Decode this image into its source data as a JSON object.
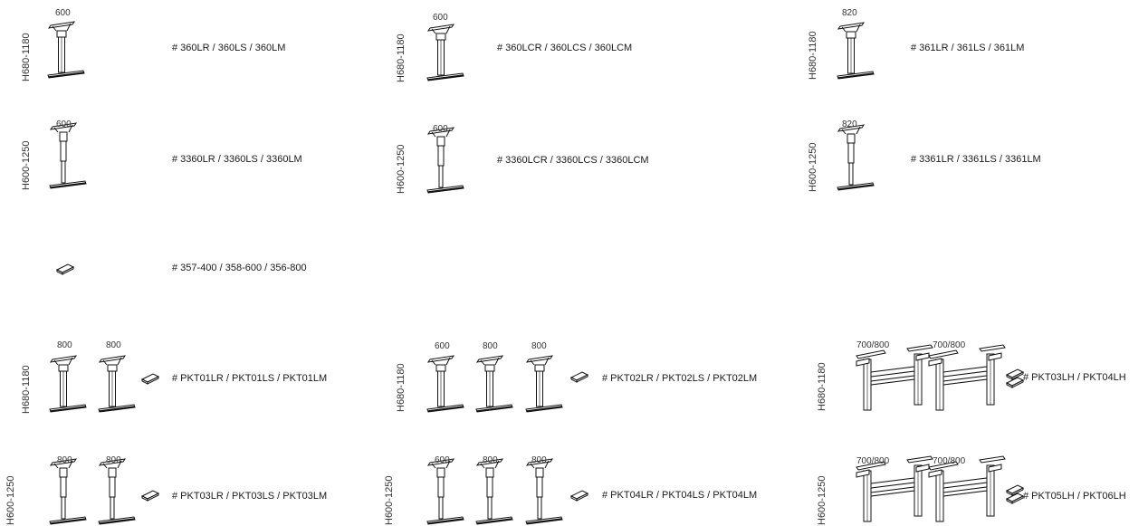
{
  "rows": [
    {
      "height": "H680-1180",
      "widths": [
        "600"
      ],
      "code": "# 360LR / 360LS / 360LM"
    },
    {
      "height": "H680-1180",
      "widths": [
        "600"
      ],
      "code": "# 360LCR / 360LCS / 360LCM"
    },
    {
      "height": "H680-1180",
      "widths": [
        "820"
      ],
      "code": "# 361LR / 361LS / 361LM"
    },
    {
      "height": "H600-1250",
      "widths": [
        "600"
      ],
      "code": "# 3360LR / 3360LS / 3360LM"
    },
    {
      "height": "H600-1250",
      "widths": [
        "600"
      ],
      "code": "# 3360LCR / 3360LCS / 3360LCM"
    },
    {
      "height": "H600-1250",
      "widths": [
        "820"
      ],
      "code": "# 3361LR / 3361LS / 3361LM"
    },
    {
      "code": "# 357-400 / 358-600 / 356-800"
    },
    {
      "height": "H680-1180",
      "widths": [
        "800",
        "800"
      ],
      "code": "# PKT01LR / PKT01LS / PKT01LM"
    },
    {
      "height": "H680-1180",
      "widths": [
        "600",
        "800",
        "800"
      ],
      "code": "# PKT02LR / PKT02LS / PKT02LM"
    },
    {
      "height": "H680-1180",
      "widths": [
        "700/800",
        "700/800"
      ],
      "code": "# PKT03LH / PKT04LH"
    },
    {
      "height": "H600-1250",
      "widths": [
        "800",
        "800"
      ],
      "code": "# PKT03LR / PKT03LS / PKT03LM"
    },
    {
      "height": "H600-1250",
      "widths": [
        "600",
        "800",
        "800"
      ],
      "code": "# PKT04LR / PKT04LS / PKT04LM"
    },
    {
      "height": "H600-1250",
      "widths": [
        "700/800",
        "700/800"
      ],
      "code": "# PKT05LH / PKT06LH"
    }
  ]
}
